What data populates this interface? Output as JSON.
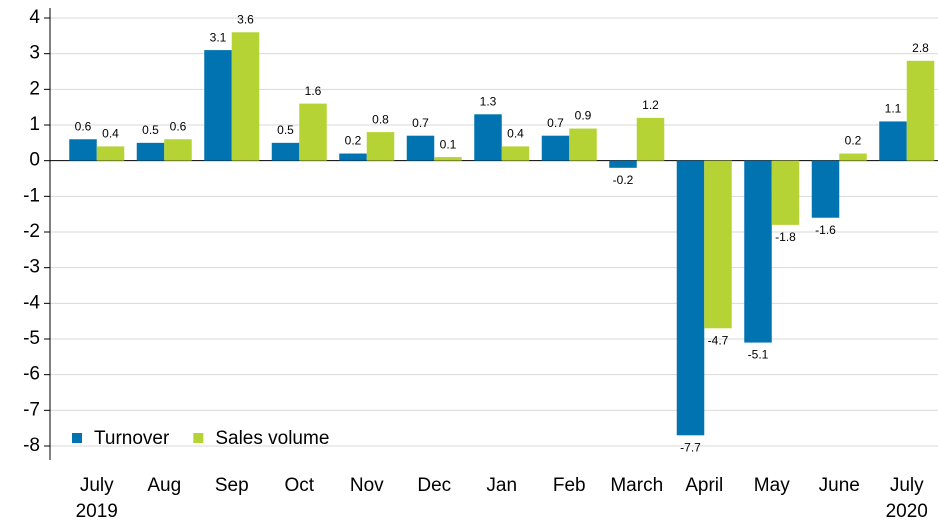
{
  "chart_data": {
    "type": "bar",
    "categories": [
      "July 2019",
      "Aug",
      "Sep",
      "Oct",
      "Nov",
      "Dec",
      "Jan",
      "Feb",
      "March",
      "April",
      "May",
      "June",
      "July 2020"
    ],
    "series": [
      {
        "name": "Turnover",
        "color": "#0073b0",
        "values": [
          0.6,
          0.5,
          3.1,
          0.5,
          0.2,
          0.7,
          1.3,
          0.7,
          -0.2,
          -7.7,
          -5.1,
          -1.6,
          1.1
        ]
      },
      {
        "name": "Sales volume",
        "color": "#b5d334",
        "values": [
          0.4,
          0.6,
          3.6,
          1.6,
          0.8,
          0.1,
          0.4,
          0.9,
          1.2,
          -4.7,
          -1.8,
          0.2,
          2.8
        ]
      }
    ],
    "ylim": [
      -8,
      4
    ],
    "yticks": [
      -8,
      -7,
      -6,
      -5,
      -4,
      -3,
      -2,
      -1,
      0,
      1,
      2,
      3,
      4
    ],
    "grid": true,
    "legend": "lower left"
  }
}
